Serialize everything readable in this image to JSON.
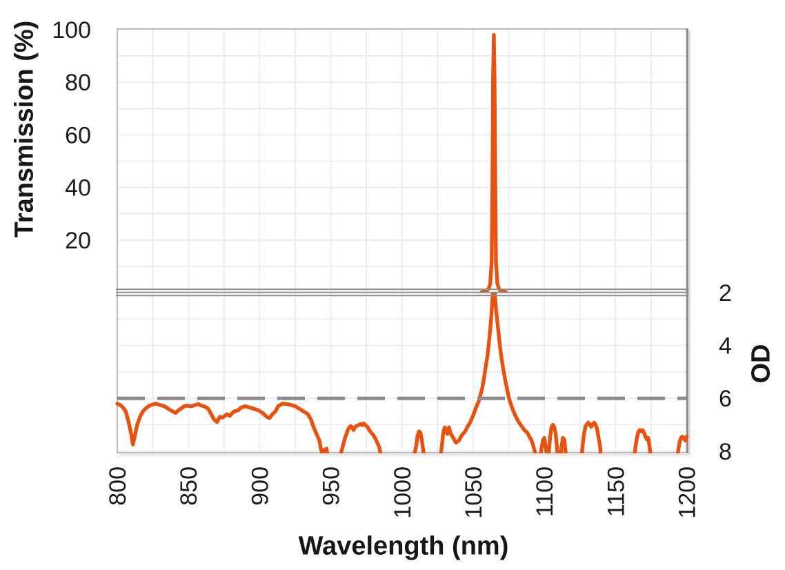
{
  "colors": {
    "curve_orange": "#E8520F",
    "reference_gray": "#8A8A8A",
    "grid_light": "#EAE8F1",
    "frame_gray": "#B9B9B9",
    "divider_gray": "#8C8C8C",
    "axis_text": "#1C1C1C",
    "background": "#FFFFFF"
  },
  "chart_data": {
    "type": "line",
    "title": "",
    "xlabel": "Wavelength (nm)",
    "x": {
      "min": 800,
      "max": 1200,
      "ticks": [
        800,
        850,
        900,
        950,
        1000,
        1050,
        1100,
        1150,
        1200
      ],
      "grid_step": 25
    },
    "legend": "none",
    "grid": "on",
    "panels": [
      {
        "name": "transmission-panel",
        "ylabel": "Transmission (%)",
        "ymin": 0,
        "ymax": 100,
        "ticks": [
          100,
          80,
          60,
          40,
          20
        ],
        "grid_step": 10,
        "inverted": false,
        "series": [
          {
            "name": "transmission-spectrum",
            "color": "#E8520F",
            "style": "solid",
            "peak_nm": 1064,
            "peak_transmission_pct": 98,
            "points": [
              [
                1056,
                0.2
              ],
              [
                1058,
                0.45
              ],
              [
                1060,
                0.9
              ],
              [
                1061,
                1.6
              ],
              [
                1062,
                3.5
              ],
              [
                1063,
                12
              ],
              [
                1063.6,
                45
              ],
              [
                1064,
                82
              ],
              [
                1064.5,
                98
              ],
              [
                1065,
                82
              ],
              [
                1065.5,
                45
              ],
              [
                1066,
                12
              ],
              [
                1067,
                3.5
              ],
              [
                1068,
                1.6
              ],
              [
                1069,
                0.9
              ],
              [
                1071,
                0.45
              ],
              [
                1073,
                0.2
              ]
            ]
          }
        ]
      },
      {
        "name": "od-panel",
        "ylabel": "OD",
        "ymin": 2,
        "ymax": 8,
        "ticks": [
          2,
          4,
          6,
          8
        ],
        "grid_step": 1,
        "inverted": true,
        "series": [
          {
            "name": "od-spectrum",
            "color": "#E8520F",
            "style": "solid",
            "points": [
              [
                800,
                6.2
              ],
              [
                802,
                6.25
              ],
              [
                804,
                6.35
              ],
              [
                806,
                6.5
              ],
              [
                808,
                6.9
              ],
              [
                810,
                7.4
              ],
              [
                811,
                7.75
              ],
              [
                812,
                7.5
              ],
              [
                814,
                7.0
              ],
              [
                816,
                6.7
              ],
              [
                818,
                6.5
              ],
              [
                820,
                6.38
              ],
              [
                822,
                6.3
              ],
              [
                824,
                6.25
              ],
              [
                827,
                6.2
              ],
              [
                830,
                6.25
              ],
              [
                833,
                6.3
              ],
              [
                836,
                6.4
              ],
              [
                839,
                6.5
              ],
              [
                841,
                6.55
              ],
              [
                843,
                6.45
              ],
              [
                845,
                6.38
              ],
              [
                847,
                6.3
              ],
              [
                849,
                6.28
              ],
              [
                852,
                6.3
              ],
              [
                855,
                6.25
              ],
              [
                857,
                6.22
              ],
              [
                859,
                6.28
              ],
              [
                861,
                6.3
              ],
              [
                864,
                6.4
              ],
              [
                866,
                6.6
              ],
              [
                868,
                6.8
              ],
              [
                870,
                6.9
              ],
              [
                872,
                6.7
              ],
              [
                874,
                6.73
              ],
              [
                877,
                6.6
              ],
              [
                879,
                6.66
              ],
              [
                882,
                6.5
              ],
              [
                885,
                6.45
              ],
              [
                887,
                6.35
              ],
              [
                890,
                6.3
              ],
              [
                893,
                6.35
              ],
              [
                896,
                6.4
              ],
              [
                899,
                6.45
              ],
              [
                902,
                6.55
              ],
              [
                905,
                6.7
              ],
              [
                907,
                6.75
              ],
              [
                909,
                6.6
              ],
              [
                911,
                6.5
              ],
              [
                913,
                6.3
              ],
              [
                916,
                6.2
              ],
              [
                919,
                6.22
              ],
              [
                922,
                6.25
              ],
              [
                925,
                6.3
              ],
              [
                928,
                6.4
              ],
              [
                931,
                6.5
              ],
              [
                934,
                6.6
              ],
              [
                936,
                6.8
              ],
              [
                938,
                7.1
              ],
              [
                940,
                7.35
              ],
              [
                942,
                7.6
              ],
              [
                943,
                7.9
              ],
              [
                944,
                8.1
              ],
              [
                945,
                7.95
              ],
              [
                946,
                8.15
              ],
              [
                947,
                7.9
              ],
              [
                948,
                8.3
              ],
              [
                956,
                8.3
              ],
              [
                958,
                7.9
              ],
              [
                960,
                7.5
              ],
              [
                962,
                7.2
              ],
              [
                963,
                7.1
              ],
              [
                964,
                7.05
              ],
              [
                965,
                7.1
              ],
              [
                966,
                7.2
              ],
              [
                967,
                7.1
              ],
              [
                968,
                7.05
              ],
              [
                970,
                7.0
              ],
              [
                971,
                6.97
              ],
              [
                972,
                7.02
              ],
              [
                973,
                6.95
              ],
              [
                974,
                7.0
              ],
              [
                975,
                7.05
              ],
              [
                976,
                7.1
              ],
              [
                977,
                7.2
              ],
              [
                978,
                7.27
              ],
              [
                980,
                7.4
              ],
              [
                982,
                7.6
              ],
              [
                984,
                7.85
              ],
              [
                985,
                8.1
              ],
              [
                986,
                8.3
              ],
              [
                1008,
                8.3
              ],
              [
                1010,
                7.8
              ],
              [
                1011,
                7.4
              ],
              [
                1012,
                7.25
              ],
              [
                1013,
                7.3
              ],
              [
                1014,
                7.6
              ],
              [
                1015,
                8.0
              ],
              [
                1016,
                8.3
              ],
              [
                1027,
                8.3
              ],
              [
                1028,
                7.8
              ],
              [
                1029,
                7.3
              ],
              [
                1030,
                7.1
              ],
              [
                1031,
                7.2
              ],
              [
                1032,
                7.35
              ],
              [
                1033,
                7.1
              ],
              [
                1034,
                7.3
              ],
              [
                1035,
                7.4
              ],
              [
                1036,
                7.5
              ],
              [
                1038,
                7.68
              ],
              [
                1040,
                7.6
              ],
              [
                1042,
                7.4
              ],
              [
                1044,
                7.28
              ],
              [
                1046,
                7.08
              ],
              [
                1048,
                6.9
              ],
              [
                1050,
                6.65
              ],
              [
                1052,
                6.35
              ],
              [
                1054,
                6.1
              ],
              [
                1056,
                5.7
              ],
              [
                1057,
                5.45
              ],
              [
                1058,
                5.1
              ],
              [
                1059,
                4.75
              ],
              [
                1060,
                4.4
              ],
              [
                1061,
                3.95
              ],
              [
                1062,
                3.4
              ],
              [
                1063,
                2.7
              ],
              [
                1063.7,
                2.1
              ],
              [
                1064.5,
                0.0
              ],
              [
                1065.3,
                2.1
              ],
              [
                1066,
                2.6
              ],
              [
                1067,
                3.1
              ],
              [
                1068,
                3.6
              ],
              [
                1069,
                4.1
              ],
              [
                1070,
                4.5
              ],
              [
                1071,
                4.85
              ],
              [
                1072,
                5.15
              ],
              [
                1073,
                5.45
              ],
              [
                1074,
                5.7
              ],
              [
                1075,
                5.95
              ],
              [
                1076,
                6.15
              ],
              [
                1078,
                6.45
              ],
              [
                1080,
                6.7
              ],
              [
                1082,
                6.9
              ],
              [
                1084,
                7.05
              ],
              [
                1086,
                7.2
              ],
              [
                1088,
                7.3
              ],
              [
                1090,
                7.5
              ],
              [
                1091,
                7.6
              ],
              [
                1092,
                7.75
              ],
              [
                1093,
                7.95
              ],
              [
                1094,
                8.15
              ],
              [
                1095,
                8.3
              ],
              [
                1097,
                8.3
              ],
              [
                1098,
                7.9
              ],
              [
                1099,
                7.6
              ],
              [
                1100,
                7.5
              ],
              [
                1101,
                7.85
              ],
              [
                1102,
                8.3
              ],
              [
                1103,
                8.15
              ],
              [
                1104,
                7.5
              ],
              [
                1105,
                7.1
              ],
              [
                1106,
                7.0
              ],
              [
                1107,
                7.1
              ],
              [
                1108,
                7.35
              ],
              [
                1109,
                7.95
              ],
              [
                1110,
                8.3
              ],
              [
                1111.5,
                8.3
              ],
              [
                1112,
                7.85
              ],
              [
                1113,
                7.5
              ],
              [
                1114,
                7.55
              ],
              [
                1115,
                8.05
              ],
              [
                1116,
                8.3
              ],
              [
                1126,
                8.3
              ],
              [
                1127,
                7.75
              ],
              [
                1128,
                7.3
              ],
              [
                1129,
                7.05
              ],
              [
                1130,
                6.97
              ],
              [
                1131,
                6.92
              ],
              [
                1132,
                7.0
              ],
              [
                1133,
                7.08
              ],
              [
                1134,
                6.97
              ],
              [
                1135,
                6.92
              ],
              [
                1136,
                7.0
              ],
              [
                1137,
                7.15
              ],
              [
                1138,
                7.45
              ],
              [
                1139,
                7.75
              ],
              [
                1140,
                8.3
              ],
              [
                1163,
                8.3
              ],
              [
                1164,
                7.85
              ],
              [
                1165,
                7.5
              ],
              [
                1166,
                7.28
              ],
              [
                1167,
                7.2
              ],
              [
                1168,
                7.25
              ],
              [
                1169,
                7.2
              ],
              [
                1170,
                7.3
              ],
              [
                1171,
                7.45
              ],
              [
                1172,
                7.55
              ],
              [
                1173,
                7.5
              ],
              [
                1174,
                7.85
              ],
              [
                1175,
                8.3
              ],
              [
                1193,
                8.3
              ],
              [
                1194,
                8.0
              ],
              [
                1195,
                7.65
              ],
              [
                1196,
                7.5
              ],
              [
                1197,
                7.45
              ],
              [
                1198,
                7.5
              ],
              [
                1199,
                7.6
              ],
              [
                1200,
                7.45
              ]
            ]
          },
          {
            "name": "od6-reference-line",
            "color": "#8A8A8A",
            "style": "dashed",
            "points": [
              [
                800,
                6
              ],
              [
                1200,
                6
              ]
            ]
          }
        ]
      }
    ]
  }
}
